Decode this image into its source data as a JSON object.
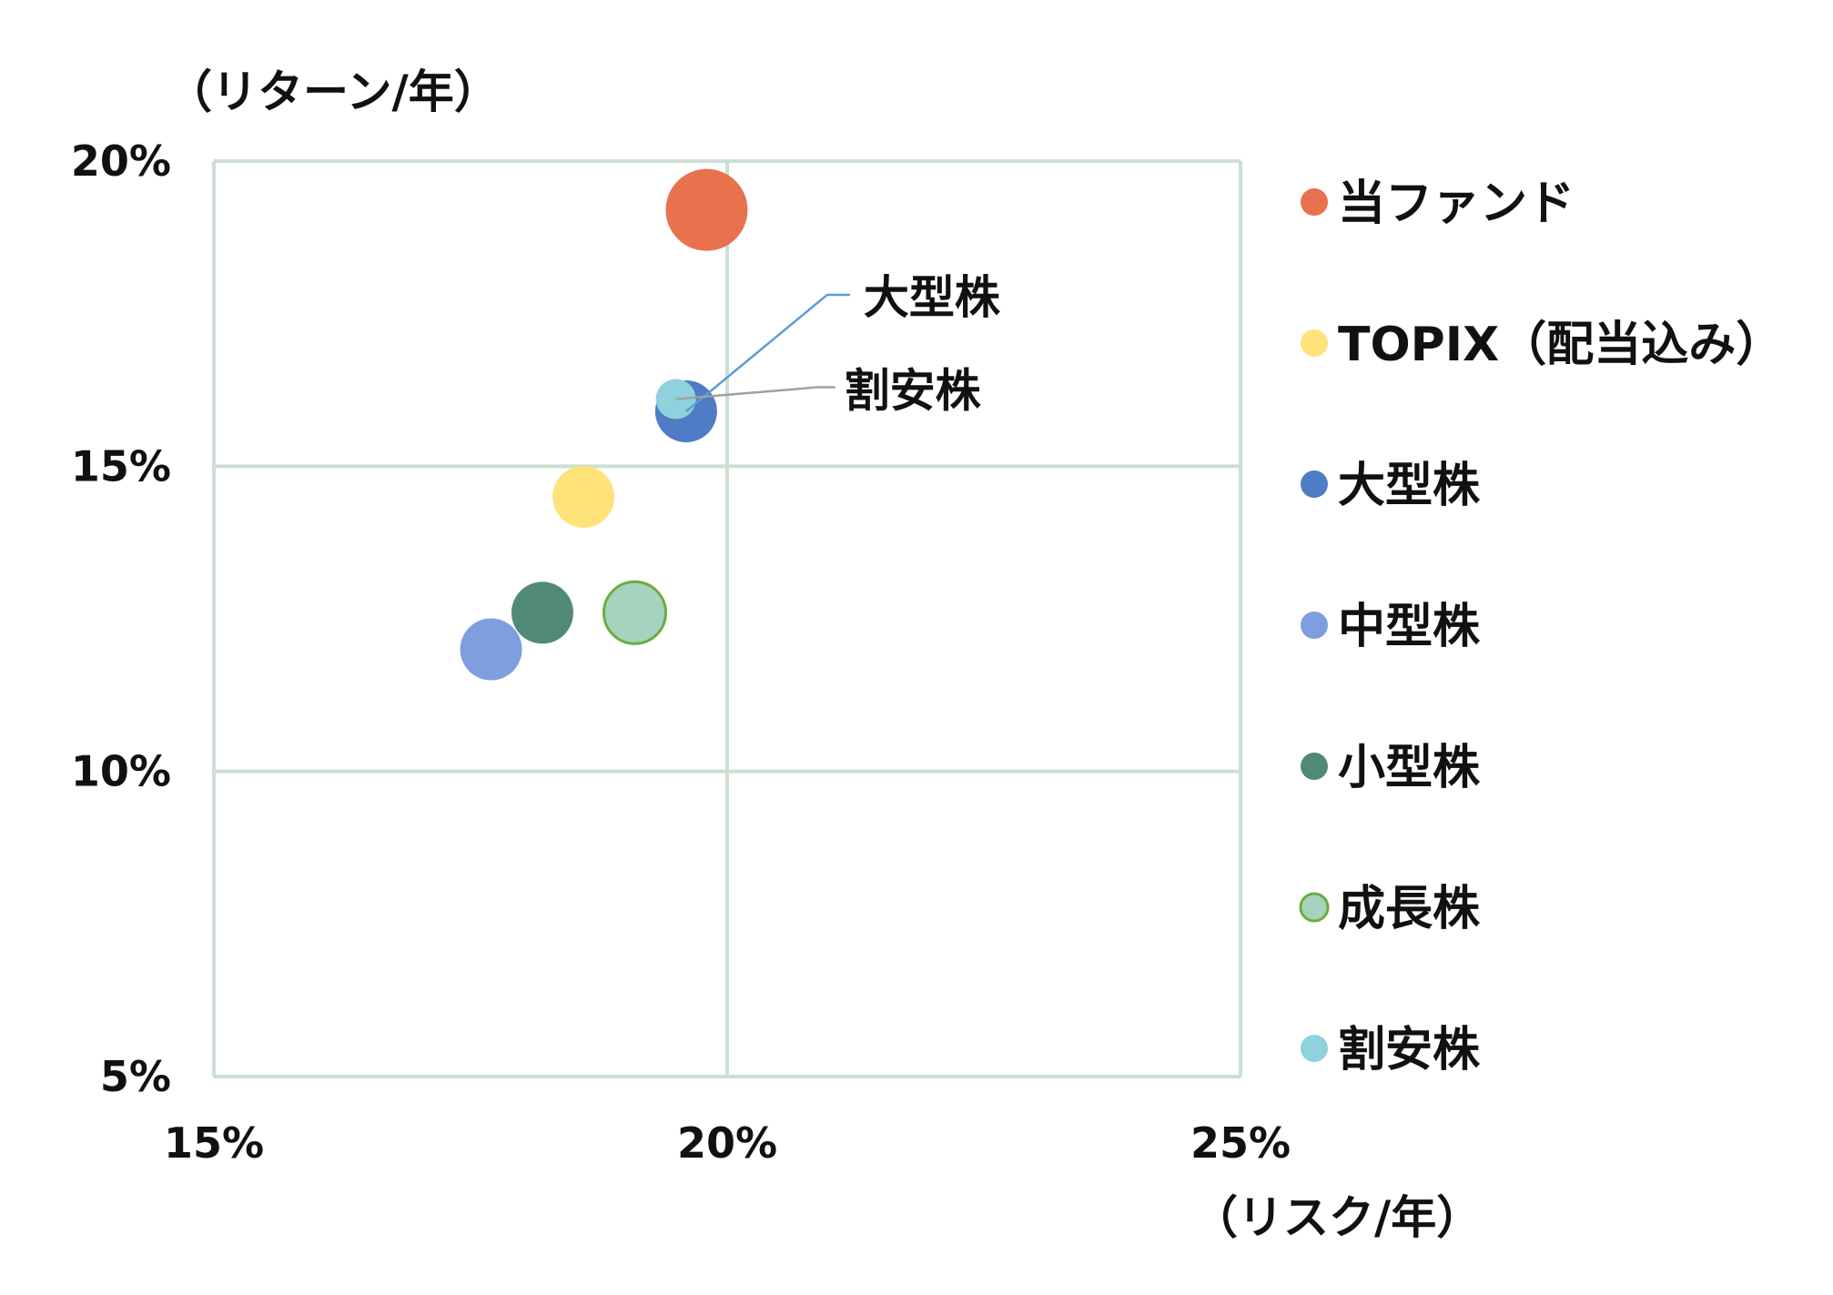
{
  "chart_data": {
    "type": "scatter",
    "title": "",
    "xlabel": "（リスク/年）",
    "ylabel": "（リターン/年）",
    "xlim": [
      15,
      25
    ],
    "ylim": [
      5,
      20
    ],
    "x_ticks": [
      "15%",
      "20%",
      "25%"
    ],
    "y_ticks": [
      "20%",
      "15%",
      "10%",
      "5%"
    ],
    "grid": true,
    "legend_position": "right",
    "series": [
      {
        "name": "当ファンド",
        "x": 19.8,
        "y": 19.2,
        "color": "#E8714E"
      },
      {
        "name": "TOPIX（配当込み）",
        "x": 18.6,
        "y": 14.5,
        "color": "#FFE27A"
      },
      {
        "name": "大型株",
        "x": 19.6,
        "y": 15.9,
        "color": "#4F7CC4"
      },
      {
        "name": "中型株",
        "x": 17.7,
        "y": 12.0,
        "color": "#7E9EDE"
      },
      {
        "name": "小型株",
        "x": 18.2,
        "y": 12.6,
        "color": "#508A76"
      },
      {
        "name": "成長株",
        "x": 19.1,
        "y": 12.6,
        "color": "#A6D2C0",
        "stroke": "#6AAE3C"
      },
      {
        "name": "割安株",
        "x": 19.5,
        "y": 16.1,
        "color": "#8FD1DD"
      }
    ],
    "annotations": [
      {
        "text": "大型株",
        "target": "大型株",
        "line_color": "#5B9BD5"
      },
      {
        "text": "割安株",
        "target": "割安株",
        "line_color": "#A0A0A0"
      }
    ],
    "colors": {
      "grid": "#CCDFD2",
      "text": "#111111"
    }
  }
}
